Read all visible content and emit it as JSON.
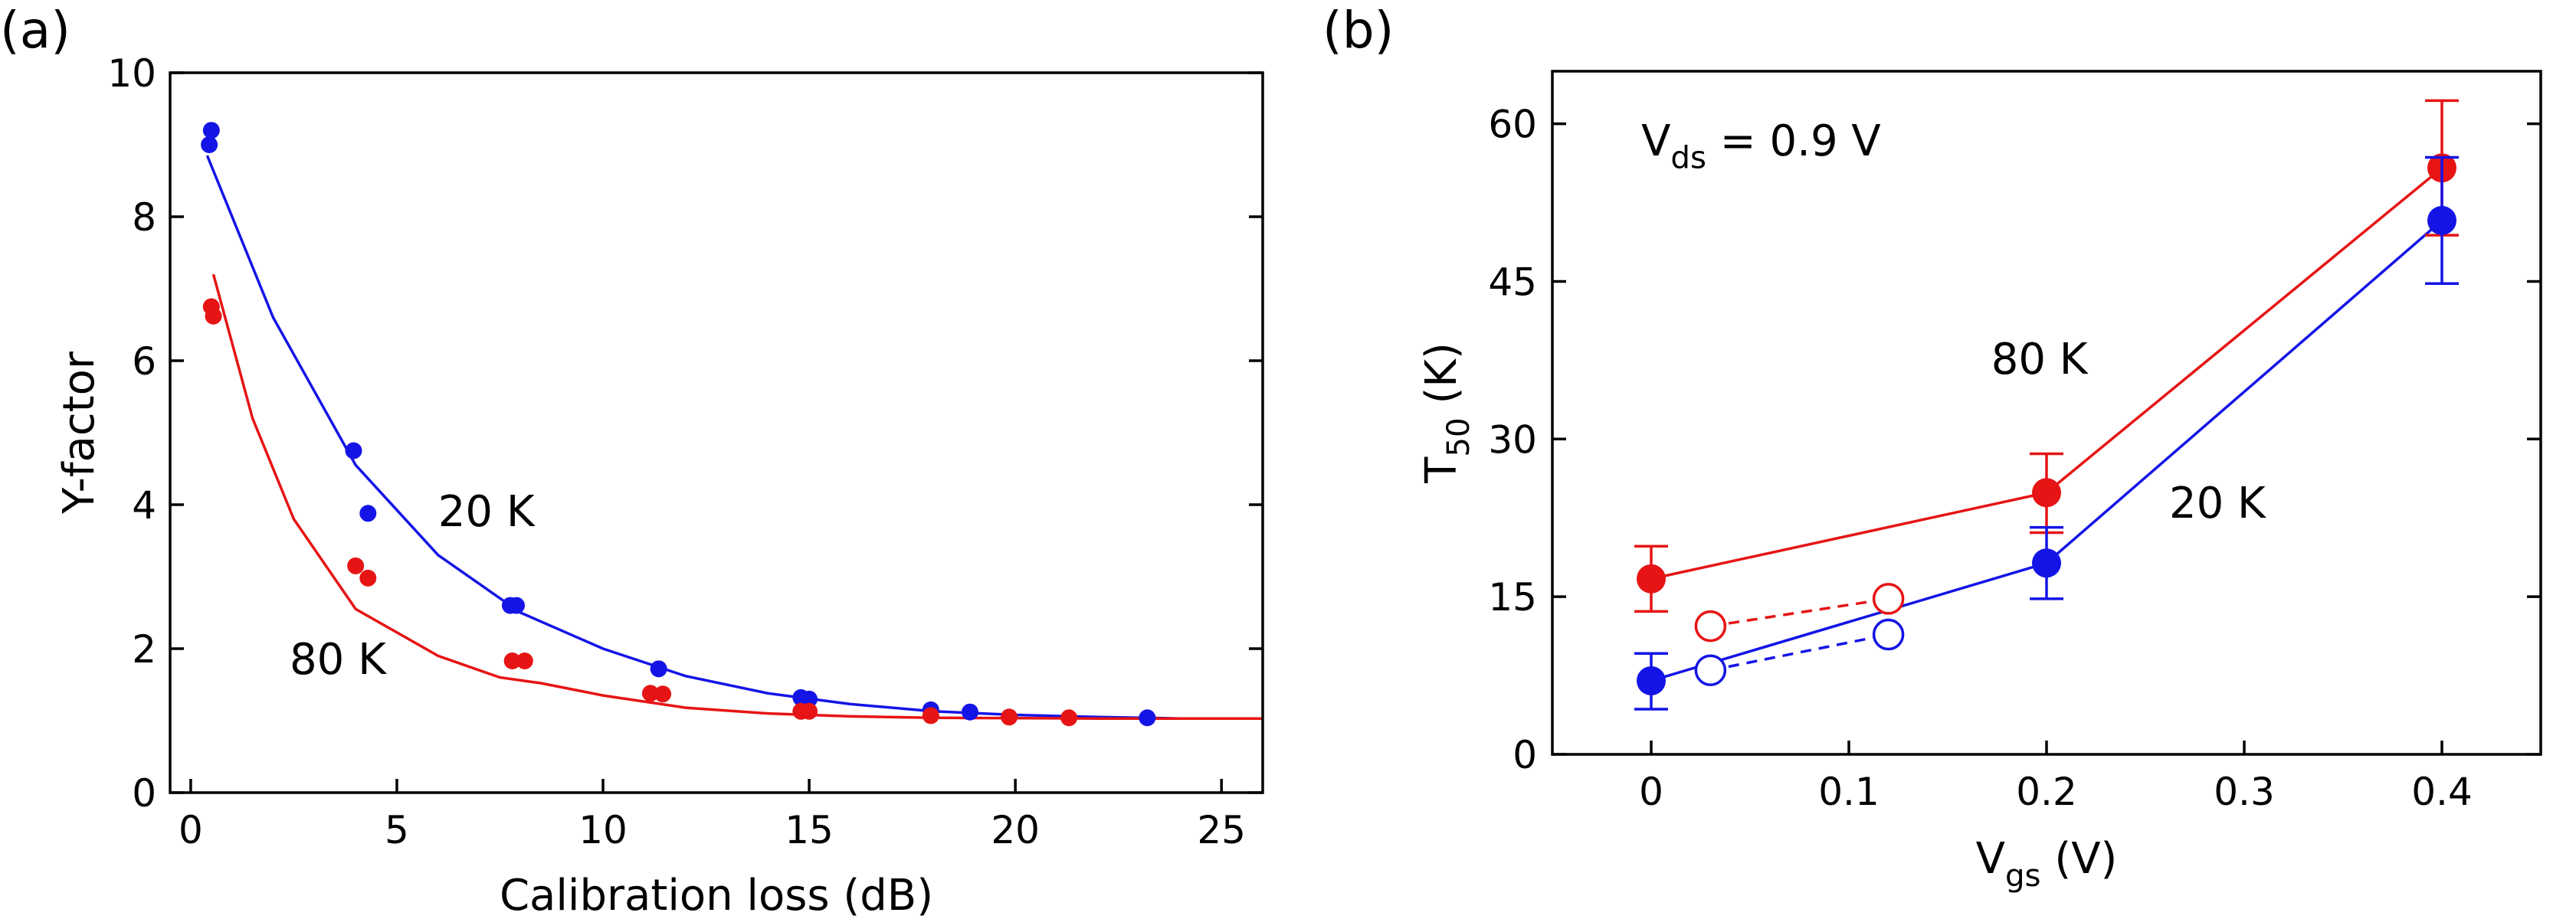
{
  "chart_data": [
    {
      "type": "scatter",
      "panel_label": "(a)",
      "xlabel": "Calibration loss (dB)",
      "ylabel": "Y-factor",
      "xlim": [
        -0.5,
        26
      ],
      "ylim": [
        0,
        10
      ],
      "xticks": [
        0,
        5,
        10,
        15,
        20,
        25
      ],
      "xtick_labels": [
        "0",
        "5",
        "10",
        "15",
        "20",
        "25"
      ],
      "yticks": [
        0,
        2,
        4,
        6,
        8,
        10
      ],
      "ytick_labels": [
        "0",
        "2",
        "4",
        "6",
        "8",
        "10"
      ],
      "series": [
        {
          "name": "20 K",
          "color": "#1414e6",
          "points": [
            [
              0.45,
              9.0
            ],
            [
              0.5,
              9.2
            ],
            [
              3.95,
              4.75
            ],
            [
              4.3,
              3.88
            ],
            [
              7.75,
              2.6
            ],
            [
              7.9,
              2.6
            ],
            [
              11.35,
              1.72
            ],
            [
              14.8,
              1.32
            ],
            [
              15.0,
              1.3
            ],
            [
              17.95,
              1.15
            ],
            [
              18.9,
              1.12
            ],
            [
              23.2,
              1.04
            ]
          ],
          "fit": [
            [
              0.4,
              8.85
            ],
            [
              2,
              6.6
            ],
            [
              4,
              4.55
            ],
            [
              6,
              3.3
            ],
            [
              8,
              2.5
            ],
            [
              10,
              2.0
            ],
            [
              12,
              1.62
            ],
            [
              14,
              1.38
            ],
            [
              16,
              1.23
            ],
            [
              18,
              1.13
            ],
            [
              20,
              1.08
            ],
            [
              22,
              1.05
            ],
            [
              24,
              1.03
            ],
            [
              26,
              1.03
            ]
          ]
        },
        {
          "name": "80 K",
          "color": "#e61414",
          "points": [
            [
              0.5,
              6.75
            ],
            [
              0.55,
              6.62
            ],
            [
              4.0,
              3.15
            ],
            [
              4.3,
              2.98
            ],
            [
              7.8,
              1.83
            ],
            [
              8.1,
              1.83
            ],
            [
              11.15,
              1.38
            ],
            [
              11.45,
              1.37
            ],
            [
              14.8,
              1.13
            ],
            [
              15.0,
              1.13
            ],
            [
              17.95,
              1.07
            ],
            [
              19.85,
              1.05
            ],
            [
              21.3,
              1.04
            ]
          ],
          "fit": [
            [
              0.55,
              7.2
            ],
            [
              1.5,
              5.2
            ],
            [
              2.5,
              3.8
            ],
            [
              4,
              2.55
            ],
            [
              6,
              1.9
            ],
            [
              7.5,
              1.6
            ],
            [
              8.5,
              1.52
            ],
            [
              10,
              1.35
            ],
            [
              12,
              1.18
            ],
            [
              14,
              1.1
            ],
            [
              16,
              1.06
            ],
            [
              18,
              1.04
            ],
            [
              22,
              1.03
            ],
            [
              26,
              1.03
            ]
          ]
        }
      ],
      "annotations": [
        {
          "text": "20 K",
          "color": "#1414e6",
          "at": [
            6.0,
            3.7
          ]
        },
        {
          "text": "80 K",
          "color": "#e61414",
          "at": [
            2.4,
            1.65
          ]
        }
      ]
    },
    {
      "type": "line",
      "panel_label": "(b)",
      "xlabel": "V",
      "xlabel_sub": "gs",
      "xlabel_unit": " (V)",
      "ylabel": "T",
      "ylabel_sub": "50",
      "ylabel_unit": " (K)",
      "xlim": [
        -0.05,
        0.45
      ],
      "ylim": [
        0,
        65
      ],
      "xticks": [
        0,
        0.1,
        0.2,
        0.3,
        0.4
      ],
      "xtick_labels": [
        "0",
        "0.1",
        "0.2",
        "0.3",
        "0.4"
      ],
      "yticks": [
        0,
        15,
        30,
        45,
        60
      ],
      "ytick_labels": [
        "0",
        "15",
        "30",
        "45",
        "60"
      ],
      "annotation_main": {
        "text": "V",
        "sub": "ds",
        "rest": " = 0.9 V",
        "at": [
          -0.005,
          57
        ]
      },
      "series": [
        {
          "name": "80 K",
          "color": "#e61414",
          "style": "solid-filled",
          "points": [
            [
              0,
              16.7
            ],
            [
              0.2,
              24.9
            ],
            [
              0.4,
              55.8
            ]
          ],
          "errors": [
            [
              13.6,
              19.8
            ],
            [
              21.1,
              28.6
            ],
            [
              49.4,
              62.2
            ]
          ]
        },
        {
          "name": "20 K",
          "color": "#1414e6",
          "style": "solid-filled",
          "points": [
            [
              0,
              7.0
            ],
            [
              0.2,
              18.2
            ],
            [
              0.4,
              50.8
            ]
          ],
          "errors": [
            [
              4.3,
              9.6
            ],
            [
              14.8,
              21.6
            ],
            [
              44.8,
              56.8
            ]
          ]
        },
        {
          "name": "80 K open",
          "color": "#e61414",
          "style": "dashed-open",
          "points": [
            [
              0.03,
              12.2
            ],
            [
              0.12,
              14.8
            ]
          ]
        },
        {
          "name": "20 K open",
          "color": "#1414e6",
          "style": "dashed-open",
          "points": [
            [
              0.03,
              8.0
            ],
            [
              0.12,
              11.4
            ]
          ]
        }
      ],
      "annotations": [
        {
          "text": "80 K",
          "color": "#e61414",
          "at": [
            0.172,
            36.2
          ]
        },
        {
          "text": "20 K",
          "color": "#1414e6",
          "at": [
            0.262,
            22.5
          ]
        }
      ]
    }
  ]
}
